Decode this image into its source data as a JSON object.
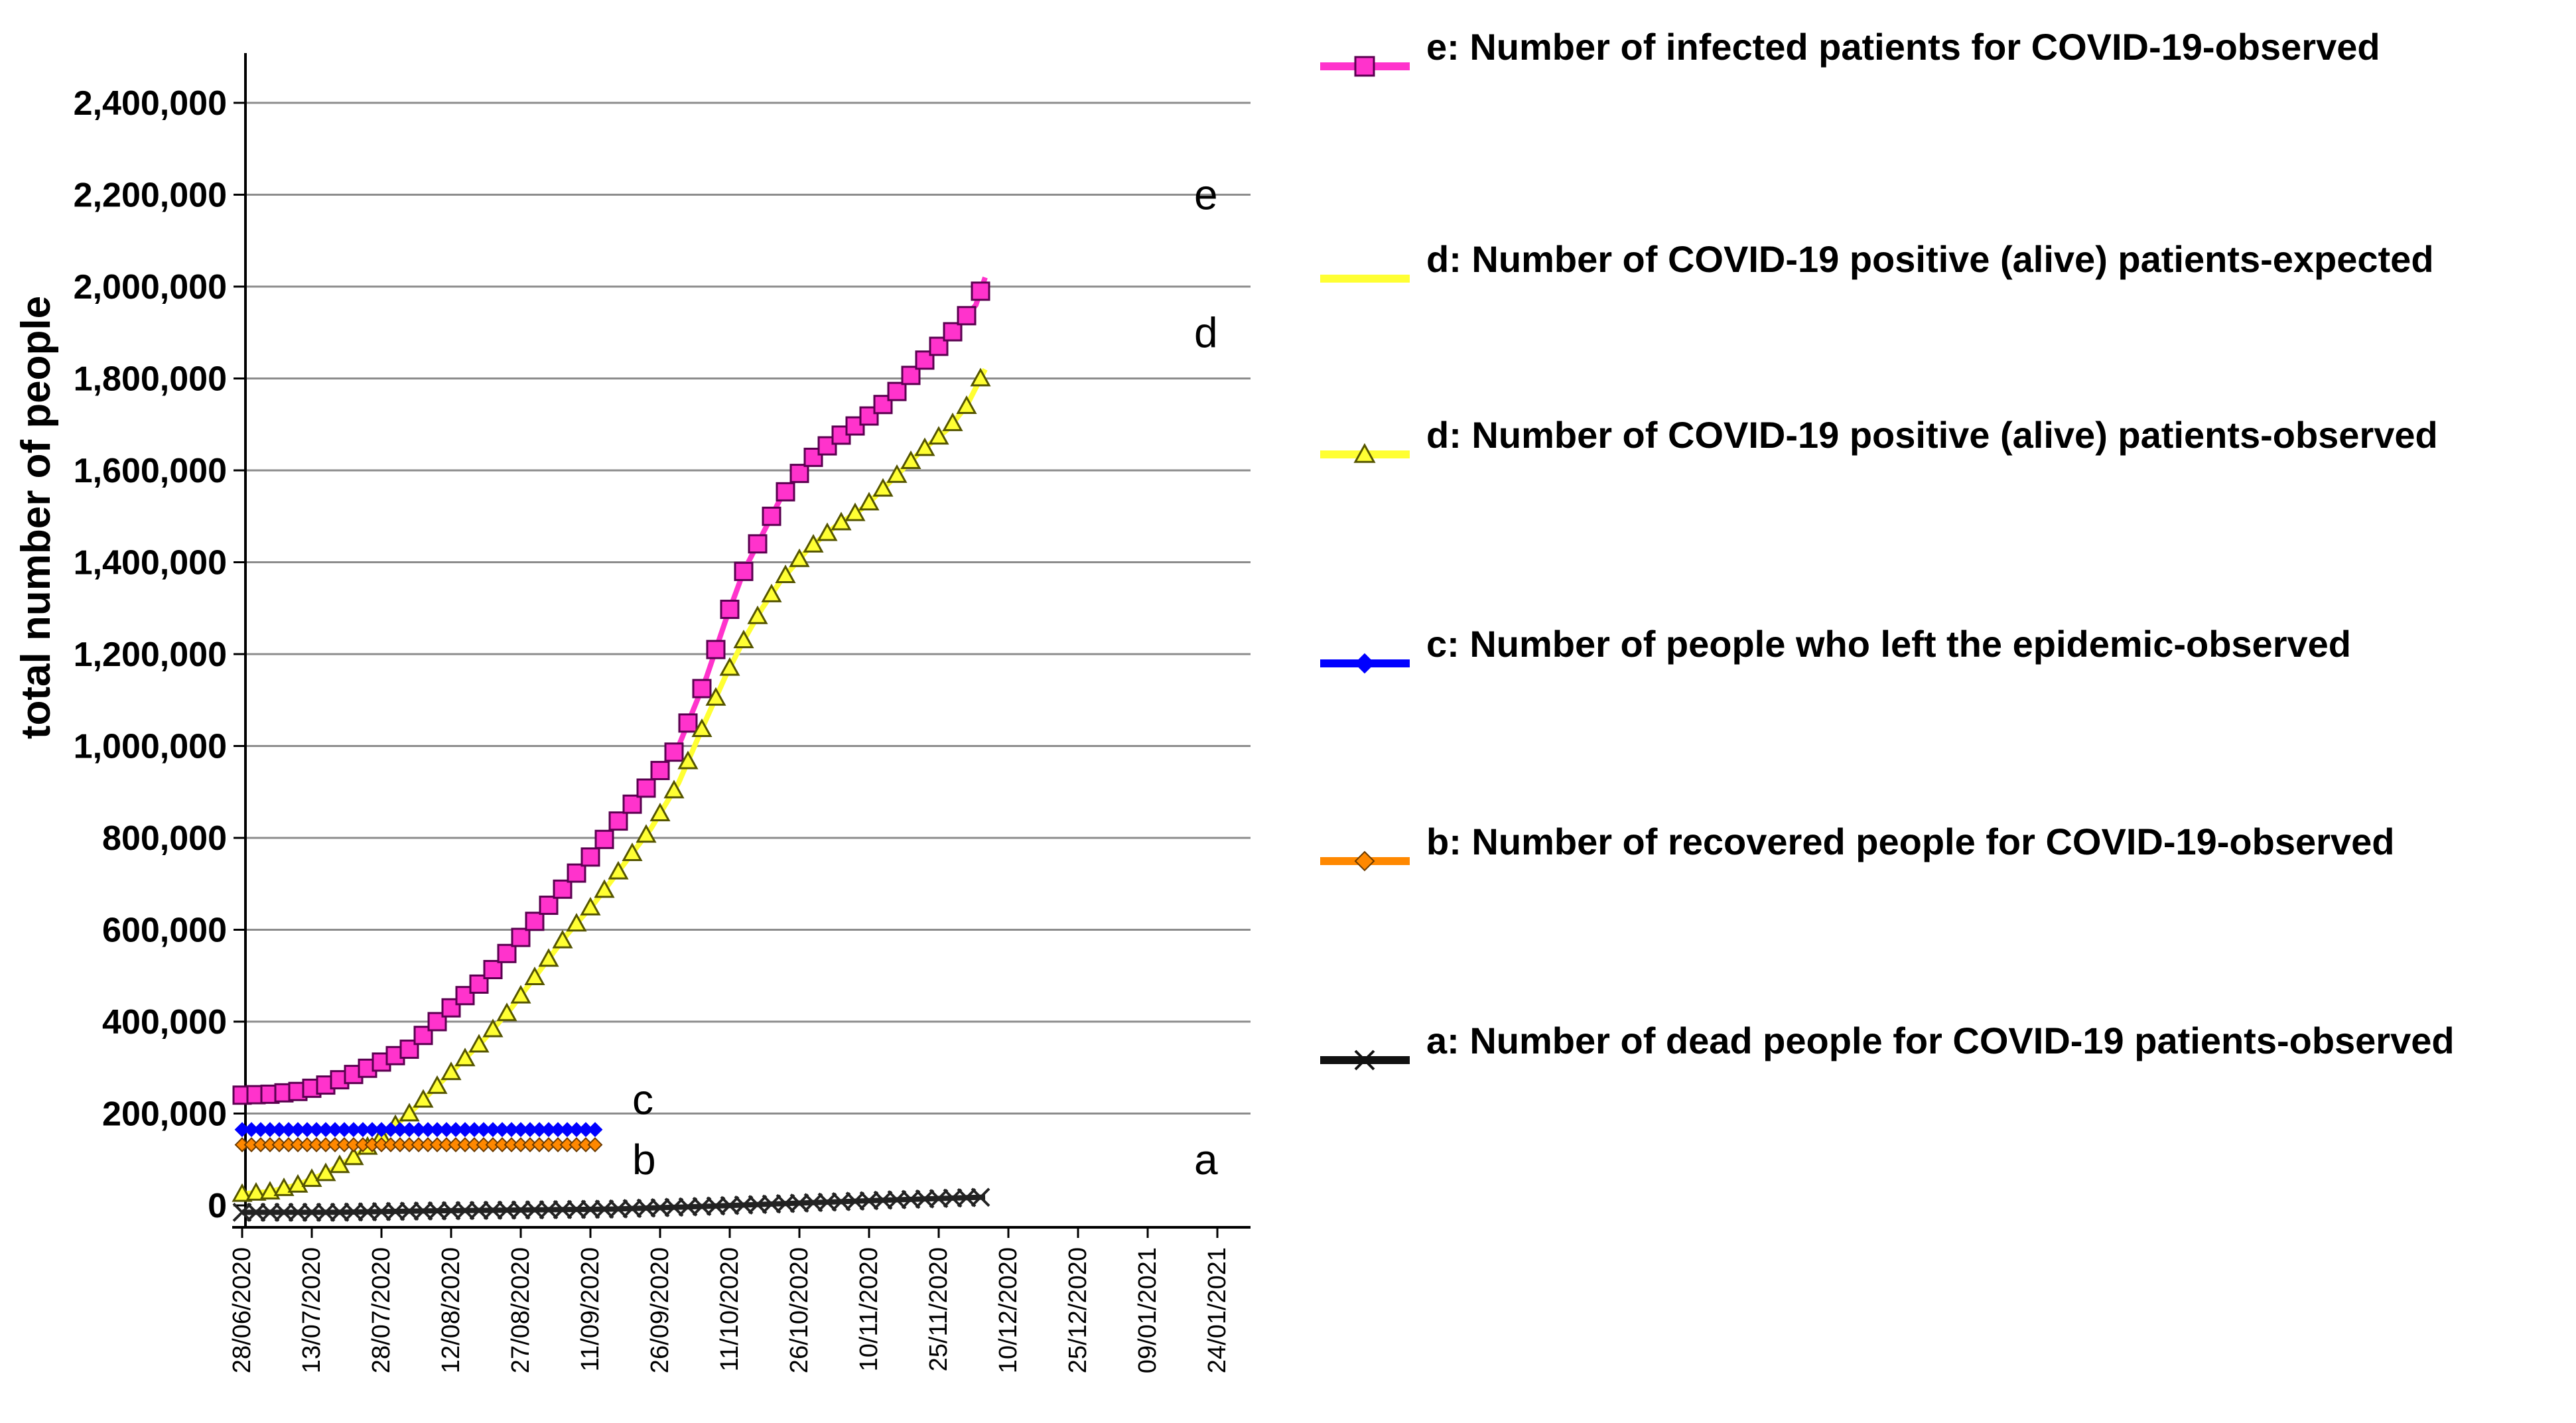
{
  "chart_data": {
    "type": "line",
    "ylabel": "total number of people",
    "ylim": [
      0,
      2500000
    ],
    "yticks": [
      0,
      200000,
      400000,
      600000,
      800000,
      1000000,
      1200000,
      1400000,
      1600000,
      1800000,
      2000000,
      2200000,
      2400000
    ],
    "ytick_labels": [
      "0",
      "200,000",
      "400,000",
      "600,000",
      "800,000",
      "1,000,000",
      "1,200,000",
      "1,400,000",
      "1,600,000",
      "1,800,000",
      "2,000,000",
      "2,200,000",
      "2,400,000"
    ],
    "xtick_labels": [
      "28/06/2020",
      "13/07/2020",
      "28/07/2020",
      "12/08/2020",
      "27/08/2020",
      "11/09/2020",
      "26/09/2020",
      "11/10/2020",
      "26/10/2020",
      "10/11/2020",
      "25/11/2020",
      "10/12/2020",
      "25/12/2020",
      "09/01/2021",
      "24/01/2021"
    ],
    "x_unit": "days since 28/06/2020",
    "xlim": [
      0,
      210
    ],
    "grid": true,
    "legend_position": "right",
    "curve_labels": [
      {
        "text": "e",
        "x": 205,
        "y": 2200000
      },
      {
        "text": "d",
        "x": 205,
        "y": 1900000
      },
      {
        "text": "c",
        "x": 84,
        "y": 230000
      },
      {
        "text": "b",
        "x": 84,
        "y": 100000
      },
      {
        "text": "a",
        "x": 205,
        "y": 100000
      }
    ],
    "series": [
      {
        "key": "e",
        "name": "e: Number of infected patients for COVID-19-observed",
        "color": "#ff33cc",
        "edge": "#5a0050",
        "marker": "square",
        "points": [
          [
            0,
            240000
          ],
          [
            6,
            242000
          ],
          [
            12,
            248000
          ],
          [
            18,
            262000
          ],
          [
            24,
            285000
          ],
          [
            30,
            312000
          ],
          [
            36,
            340000
          ],
          [
            40,
            380000
          ],
          [
            46,
            440000
          ],
          [
            52,
            490000
          ],
          [
            58,
            560000
          ],
          [
            64,
            630000
          ],
          [
            70,
            700000
          ],
          [
            76,
            770000
          ],
          [
            82,
            850000
          ],
          [
            88,
            920000
          ],
          [
            94,
            1000000
          ],
          [
            100,
            1150000
          ],
          [
            104,
            1270000
          ],
          [
            108,
            1380000
          ],
          [
            112,
            1460000
          ],
          [
            116,
            1540000
          ],
          [
            122,
            1620000
          ],
          [
            128,
            1670000
          ],
          [
            134,
            1710000
          ],
          [
            140,
            1760000
          ],
          [
            146,
            1830000
          ],
          [
            152,
            1890000
          ],
          [
            158,
            1960000
          ],
          [
            160,
            2020000
          ]
        ]
      },
      {
        "key": "d_obs",
        "name": "d: Number of COVID-19 positive (alive) patients-observed",
        "color": "#ffff33",
        "edge": "#555500",
        "marker": "triangle",
        "points": [
          [
            0,
            25000
          ],
          [
            6,
            30000
          ],
          [
            12,
            45000
          ],
          [
            18,
            70000
          ],
          [
            24,
            105000
          ],
          [
            30,
            150000
          ],
          [
            36,
            200000
          ],
          [
            40,
            240000
          ],
          [
            46,
            300000
          ],
          [
            52,
            360000
          ],
          [
            58,
            430000
          ],
          [
            64,
            510000
          ],
          [
            70,
            590000
          ],
          [
            76,
            660000
          ],
          [
            82,
            740000
          ],
          [
            88,
            820000
          ],
          [
            94,
            920000
          ],
          [
            100,
            1060000
          ],
          [
            104,
            1150000
          ],
          [
            108,
            1230000
          ],
          [
            112,
            1300000
          ],
          [
            116,
            1360000
          ],
          [
            122,
            1430000
          ],
          [
            128,
            1480000
          ],
          [
            134,
            1520000
          ],
          [
            140,
            1580000
          ],
          [
            146,
            1640000
          ],
          [
            152,
            1690000
          ],
          [
            156,
            1740000
          ],
          [
            160,
            1820000
          ]
        ]
      },
      {
        "key": "c",
        "name": "c: Number of people who left the epidemic-observed",
        "color": "#0000ff",
        "edge": "#0000ff",
        "marker": "diamond",
        "points": [
          [
            0,
            165000
          ],
          [
            10,
            165000
          ],
          [
            20,
            165000
          ],
          [
            30,
            165000
          ],
          [
            40,
            165000
          ],
          [
            50,
            165000
          ],
          [
            60,
            165000
          ],
          [
            70,
            165000
          ],
          [
            76,
            165000
          ]
        ]
      },
      {
        "key": "b",
        "name": "b: Number of recovered people for COVID-19-observed",
        "color": "#ff8800",
        "edge": "#6a3a00",
        "marker": "diamond",
        "points": [
          [
            0,
            132000
          ],
          [
            10,
            132000
          ],
          [
            20,
            132000
          ],
          [
            30,
            132000
          ],
          [
            40,
            132000
          ],
          [
            50,
            132000
          ],
          [
            60,
            132000
          ],
          [
            70,
            132000
          ],
          [
            76,
            132000
          ]
        ]
      },
      {
        "key": "a",
        "name": "a: Number of dead people for COVID-19 patients-observed",
        "color": "#222222",
        "edge": "#222222",
        "marker": "x",
        "points": [
          [
            0,
            -15000
          ],
          [
            20,
            -15000
          ],
          [
            40,
            -12000
          ],
          [
            60,
            -10000
          ],
          [
            80,
            -8000
          ],
          [
            100,
            -2000
          ],
          [
            120,
            5000
          ],
          [
            140,
            12000
          ],
          [
            160,
            18000
          ]
        ]
      }
    ],
    "legend": [
      {
        "label": "e: Number of infected patients for COVID-19-observed",
        "color": "#ff33cc",
        "edge": "#5a0050",
        "marker": "square"
      },
      {
        "label": "d: Number of COVID-19 positive (alive) patients-expected",
        "color": "#ffff33",
        "edge": "#ffff33",
        "marker": "none"
      },
      {
        "label": "d: Number of COVID-19 positive (alive) patients-observed",
        "color": "#ffff33",
        "edge": "#555500",
        "marker": "triangle"
      },
      {
        "label": "c: Number of people who left the epidemic-observed",
        "color": "#0000ff",
        "edge": "#0000ff",
        "marker": "diamond"
      },
      {
        "label": "b: Number of recovered people for COVID-19-observed",
        "color": "#ff8800",
        "edge": "#6a3a00",
        "marker": "diamond"
      },
      {
        "label": "a: Number of dead people for COVID-19 patients-observed",
        "color": "#111111",
        "edge": "#111111",
        "marker": "x"
      }
    ]
  }
}
